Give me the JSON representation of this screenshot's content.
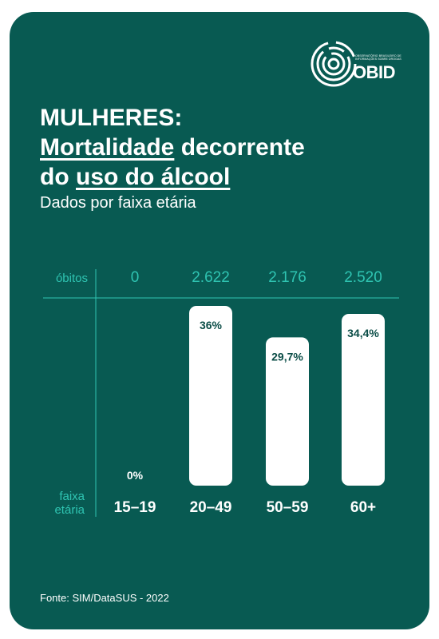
{
  "header": {
    "title_line1": "MULHERES:",
    "title_line2_u": "Mortalidade",
    "title_line2_rest": " decorrente",
    "title_line3_pre": "do ",
    "title_line3_u": "uso do álcool",
    "subtitle": "Dados por faixa etária"
  },
  "logo": {
    "small_text": "OBSERVATÓRIO BRASILEIRO DE INFORMAÇÕES SOBRE DROGAS",
    "name": "OBID",
    "icon": "obid-concentric-circles-logo"
  },
  "chart_data": {
    "type": "bar",
    "categories": [
      "15-19",
      "20-49",
      "50-59",
      "60+"
    ],
    "values": [
      0,
      36,
      29.7,
      34.4
    ],
    "value_labels": [
      "0%",
      "36%",
      "29,7%",
      "34,4%"
    ],
    "counts": [
      "0",
      "2.622",
      "2.176",
      "2.520"
    ],
    "counts_label": "óbitos",
    "category_axis_label": [
      "faixa",
      "etária"
    ],
    "ylim": [
      0,
      36
    ],
    "grid": false,
    "bar_color": "#ffffff",
    "label_color": "#0b4d47",
    "accent_color": "#2fc4b2"
  },
  "footer": {
    "source": "Fonte: SIM/DataSUS - 2022"
  },
  "colors": {
    "card_background": "#085a52",
    "text": "#ffffff",
    "accent": "#2fc4b2"
  }
}
